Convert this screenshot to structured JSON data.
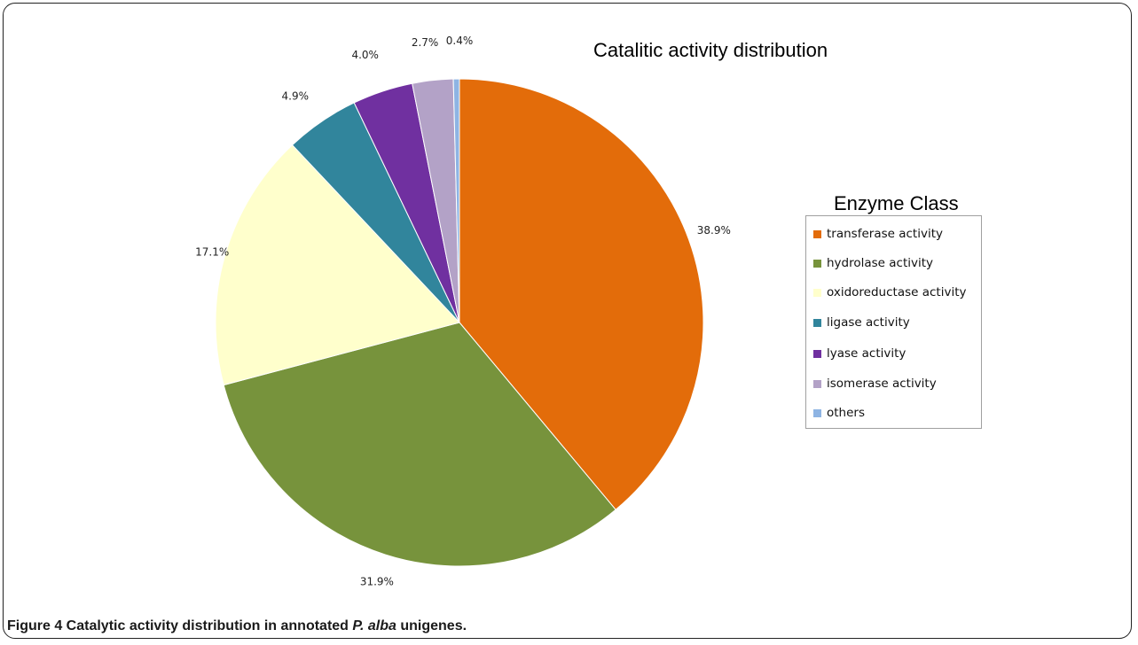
{
  "caption": {
    "prefix": "Figure 4 Catalytic activity distribution in annotated ",
    "species": "P. alba",
    "suffix": " unigenes."
  },
  "chart_data": {
    "type": "pie",
    "title": "Catalitic activity distribution",
    "legend_title": "Enzyme Class",
    "legend_position": "right",
    "start_angle": "12 o'clock",
    "direction": "clockwise",
    "slices": [
      {
        "label": "transferase activity",
        "value": 38.9,
        "value_label": "38.9%",
        "color": "#e36c0a"
      },
      {
        "label": "hydrolase activity",
        "value": 31.9,
        "value_label": "31.9%",
        "color": "#77933c"
      },
      {
        "label": "oxidoreductase activity",
        "value": 17.1,
        "value_label": "17.1%",
        "color": "#ffffcc"
      },
      {
        "label": "ligase activity",
        "value": 4.9,
        "value_label": "4.9%",
        "color": "#31859c"
      },
      {
        "label": "lyase activity",
        "value": 4.0,
        "value_label": "4.0%",
        "color": "#7030a0"
      },
      {
        "label": "isomerase activity",
        "value": 2.7,
        "value_label": "2.7%",
        "color": "#b3a2c7"
      },
      {
        "label": "others",
        "value": 0.4,
        "value_label": "0.4%",
        "color": "#8eb4e3"
      }
    ]
  }
}
